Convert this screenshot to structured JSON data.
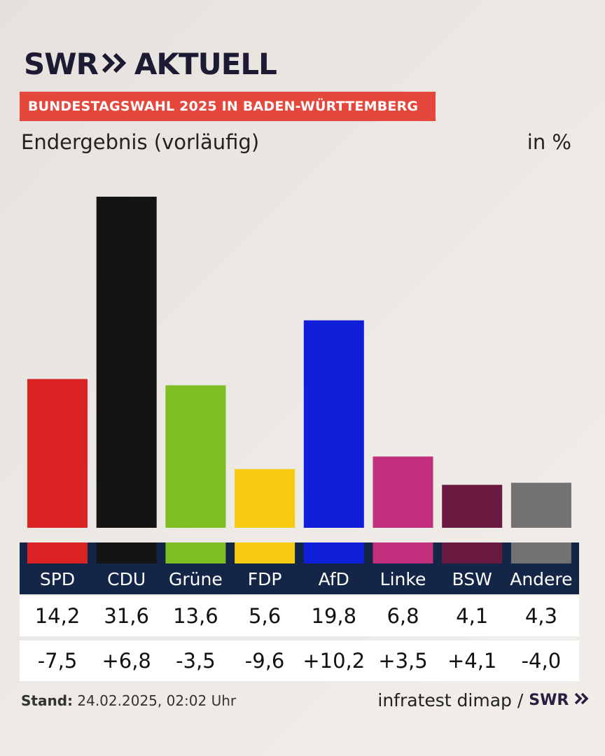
{
  "header": {
    "logo_text_1": "SWR",
    "logo_text_2": "AKTUELL",
    "banner": "BUNDESTAGSWAHL 2025 IN BADEN-WÜRTTEMBERG",
    "subtitle": "Endergebnis (vorläufig)",
    "unit": "in %"
  },
  "colors": {
    "banner": "#e5473c",
    "table_header": "#142647"
  },
  "chart_data": {
    "type": "bar",
    "categories": [
      "SPD",
      "CDU",
      "Grüne",
      "FDP",
      "AfD",
      "Linke",
      "BSW",
      "Andere"
    ],
    "values": [
      14.2,
      31.6,
      13.6,
      5.6,
      19.8,
      6.8,
      4.1,
      4.3
    ],
    "diffs": [
      "-7,5",
      "+6,8",
      "-3,5",
      "-9,6",
      "+10,2",
      "+3,5",
      "+4,1",
      "-4,0"
    ],
    "value_labels": [
      "14,2",
      "31,6",
      "13,6",
      "5,6",
      "19,8",
      "6,8",
      "4,1",
      "4,3"
    ],
    "colors": [
      "#dc2323",
      "#141414",
      "#7dbf23",
      "#f7cb0f",
      "#0f1fd8",
      "#c12f7c",
      "#6a1a40",
      "#727272"
    ],
    "ylim": [
      0,
      31.6
    ]
  },
  "footer": {
    "stand_label": "Stand:",
    "stand_value": "24.02.2025, 02:02 Uhr",
    "source": "infratest dimap /",
    "source_logo": "SWR"
  }
}
